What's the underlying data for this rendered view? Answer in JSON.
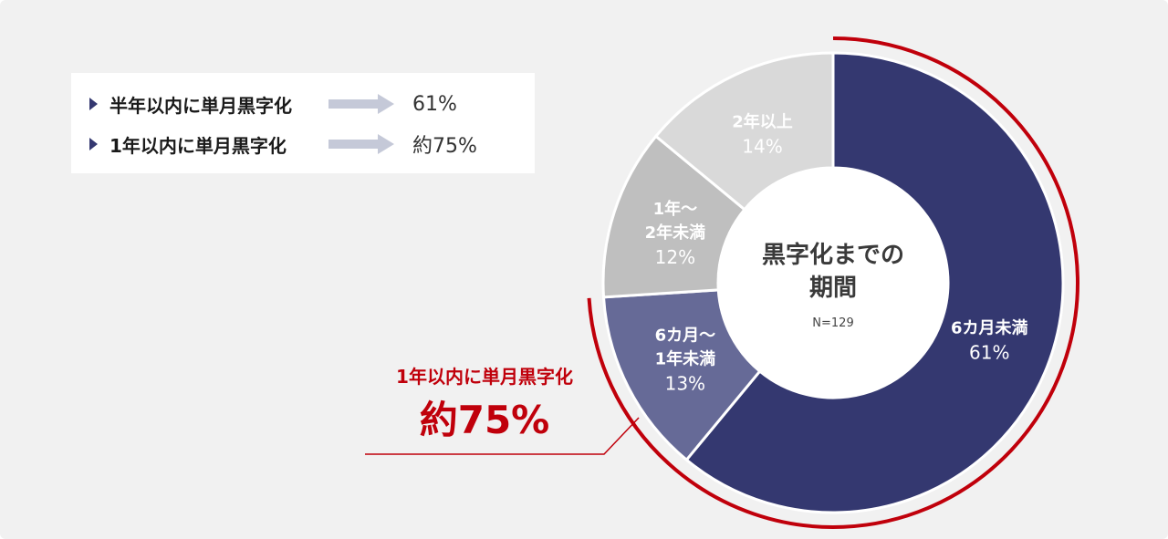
{
  "summary": {
    "rows": [
      {
        "label": "半年以内に単月黒字化",
        "value": "61%"
      },
      {
        "label": "1年以内に単月黒字化",
        "value": "約75%"
      }
    ]
  },
  "callout": {
    "label": "1年以内に単月黒字化",
    "value": "約75%"
  },
  "colors": {
    "background": "#f1f1f1",
    "highlight_red": "#c0000b",
    "slice_navy": "#343870",
    "slice_slate": "#666a97",
    "slice_gray": "#bfbfbf",
    "slice_lightgray": "#d9d9d9",
    "arrow_gray": "#c5c9d8"
  },
  "chart_data": {
    "type": "pie",
    "variant": "donut",
    "center_title": [
      "黒字化までの",
      "期間"
    ],
    "center_note": "N=129",
    "slices": [
      {
        "label": [
          "6カ月未満"
        ],
        "value": 61,
        "value_label": "61%",
        "color": "#343870"
      },
      {
        "label": [
          "6カ月～",
          "1年未満"
        ],
        "value": 13,
        "value_label": "13%",
        "color": "#666a97"
      },
      {
        "label": [
          "1年～",
          "2年未満"
        ],
        "value": 12,
        "value_label": "12%",
        "color": "#bfbfbf"
      },
      {
        "label": [
          "2年以上"
        ],
        "value": 14,
        "value_label": "14%",
        "color": "#d9d9d9"
      }
    ],
    "highlight_arc": {
      "from_slice": 0,
      "to_slice": 1,
      "color": "#c0000b"
    }
  }
}
